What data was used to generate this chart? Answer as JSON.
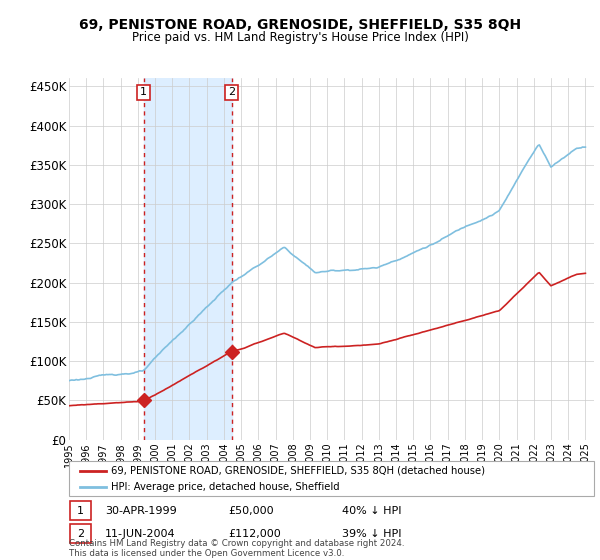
{
  "title": "69, PENISTONE ROAD, GRENOSIDE, SHEFFIELD, S35 8QH",
  "subtitle": "Price paid vs. HM Land Registry's House Price Index (HPI)",
  "property_label": "69, PENISTONE ROAD, GRENOSIDE, SHEFFIELD, S35 8QH (detached house)",
  "hpi_label": "HPI: Average price, detached house, Sheffield",
  "sale1_date": "30-APR-1999",
  "sale1_price": "£50,000",
  "sale1_hpi": "40% ↓ HPI",
  "sale2_date": "11-JUN-2004",
  "sale2_price": "£112,000",
  "sale2_hpi": "39% ↓ HPI",
  "footer": "Contains HM Land Registry data © Crown copyright and database right 2024.\nThis data is licensed under the Open Government Licence v3.0.",
  "hpi_color": "#7fbfdf",
  "property_color": "#cc2222",
  "marker_color": "#cc2222",
  "shade_color": "#ddeeff",
  "sale1_x": 1999.33,
  "sale1_y": 50000,
  "sale2_x": 2004.45,
  "sale2_y": 112000,
  "ylim": [
    0,
    460000
  ],
  "xlim_left": 1995.0,
  "xlim_right": 2025.5,
  "background_color": "#ffffff",
  "grid_color": "#cccccc"
}
